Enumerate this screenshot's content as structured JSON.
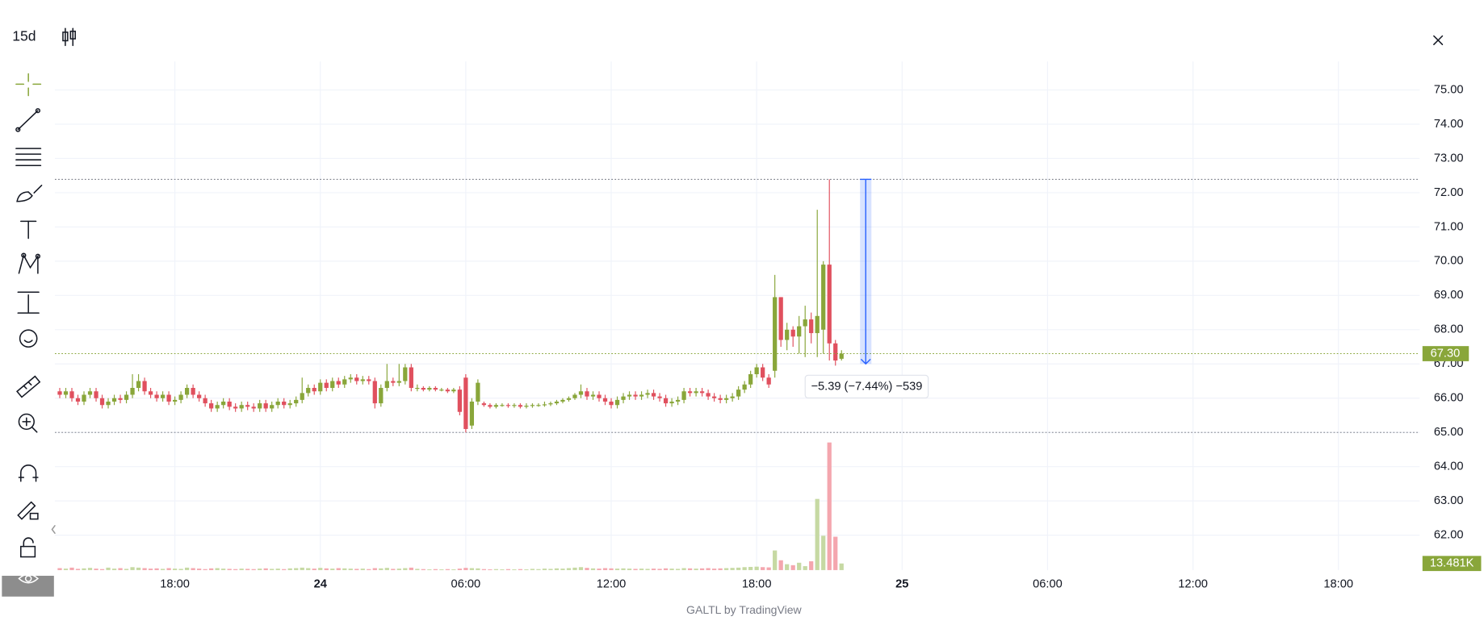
{
  "toolbar": {
    "interval": "15d"
  },
  "footer": "GALTL by TradingView",
  "chart_data": {
    "type": "candlestick",
    "up_color": "#89a63a",
    "down_color": "#e0505e",
    "up_volume_color": "#c6d9a3",
    "down_volume_color": "#f4a6ae",
    "grid": true,
    "xlim": [
      -0.8,
      224.4
    ],
    "xticks": [
      {
        "value": 19,
        "label": "18:00"
      },
      {
        "value": 43,
        "label": "24"
      },
      {
        "value": 67,
        "label": "06:00"
      },
      {
        "value": 91,
        "label": "12:00"
      },
      {
        "value": 115,
        "label": "18:00"
      },
      {
        "value": 139,
        "label": "25"
      },
      {
        "value": 163,
        "label": "06:00"
      },
      {
        "value": 187,
        "label": "12:00"
      },
      {
        "value": 211,
        "label": "18:00"
      }
    ],
    "ylim": [
      60.98,
      75.83
    ],
    "yticks": [
      {
        "value": 62,
        "label": "62.00"
      },
      {
        "value": 63,
        "label": "63.00"
      },
      {
        "value": 64,
        "label": "64.00"
      },
      {
        "value": 65,
        "label": "65.00"
      },
      {
        "value": 66,
        "label": "66.00"
      },
      {
        "value": 67,
        "label": "67.00"
      },
      {
        "value": 68,
        "label": "68.00"
      },
      {
        "value": 69,
        "label": "69.00"
      },
      {
        "value": 70,
        "label": "70.00"
      },
      {
        "value": 71,
        "label": "71.00"
      },
      {
        "value": 72,
        "label": "72.00"
      },
      {
        "value": 73,
        "label": "73.00"
      },
      {
        "value": 74,
        "label": "74.00"
      },
      {
        "value": 75,
        "label": "75.00"
      }
    ],
    "open": [
      66.2,
      66.1,
      66.2,
      66.0,
      65.9,
      66.1,
      66.2,
      66.0,
      65.8,
      65.9,
      66.0,
      65.95,
      66.1,
      66.3,
      66.5,
      66.2,
      66.1,
      66.0,
      66.1,
      65.9,
      65.95,
      66.1,
      66.3,
      66.1,
      66.0,
      65.85,
      65.7,
      65.8,
      65.9,
      65.75,
      65.7,
      65.8,
      65.75,
      65.7,
      65.85,
      65.7,
      65.8,
      65.9,
      65.8,
      65.85,
      65.95,
      66.15,
      66.3,
      66.2,
      66.45,
      66.3,
      66.5,
      66.4,
      66.55,
      66.6,
      66.5,
      66.55,
      66.5,
      65.85,
      66.3,
      66.5,
      66.45,
      66.5,
      66.9,
      66.3,
      66.3,
      66.25,
      66.3,
      66.25,
      66.25,
      66.2,
      66.25,
      66.6,
      65.2,
      65.9,
      65.85,
      65.8,
      65.75,
      65.8,
      65.8,
      65.78,
      65.8,
      65.75,
      65.78,
      65.8,
      65.8,
      65.82,
      65.85,
      65.9,
      65.95,
      66.0,
      66.1,
      66.2,
      66.05,
      66.1,
      66.0,
      65.9,
      65.8,
      65.95,
      66.05,
      66.1,
      66.05,
      66.1,
      66.15,
      66.05,
      66.0,
      65.85,
      65.9,
      65.95,
      66.2,
      66.15,
      66.2,
      66.15,
      66.05,
      66.0,
      65.95,
      66.0,
      66.05,
      66.25,
      66.4,
      66.7,
      66.9,
      66.6,
      66.8,
      68.95,
      67.7,
      68.0,
      67.8,
      68.1,
      68.3,
      67.9,
      68.0,
      69.9,
      67.6,
      67.15
    ],
    "high": [
      66.3,
      66.3,
      66.3,
      66.1,
      66.2,
      66.3,
      66.3,
      66.1,
      66.0,
      66.1,
      66.1,
      66.2,
      66.7,
      66.7,
      66.6,
      66.3,
      66.2,
      66.2,
      66.2,
      66.05,
      66.2,
      66.4,
      66.4,
      66.2,
      66.1,
      65.95,
      65.9,
      66.0,
      66.0,
      65.85,
      65.9,
      65.9,
      65.85,
      65.95,
      65.95,
      65.9,
      66.0,
      66.0,
      65.95,
      66.05,
      66.6,
      66.4,
      66.4,
      66.55,
      66.55,
      66.6,
      66.6,
      66.65,
      66.7,
      66.7,
      66.65,
      66.65,
      66.6,
      66.4,
      67.0,
      66.6,
      67.0,
      67.0,
      67.0,
      66.4,
      66.35,
      66.35,
      66.35,
      66.3,
      66.3,
      66.3,
      66.35,
      66.7,
      66.0,
      66.55,
      65.9,
      65.85,
      65.85,
      65.85,
      65.85,
      65.85,
      65.85,
      65.85,
      65.85,
      65.85,
      65.9,
      65.9,
      65.95,
      66.0,
      66.05,
      66.15,
      66.4,
      66.3,
      66.2,
      66.2,
      66.1,
      66.0,
      66.05,
      66.15,
      66.2,
      66.2,
      66.2,
      66.25,
      66.25,
      66.15,
      66.1,
      66.0,
      66.05,
      66.3,
      66.3,
      66.3,
      66.3,
      66.25,
      66.15,
      66.1,
      66.1,
      66.15,
      66.35,
      66.5,
      66.8,
      67.0,
      67.0,
      66.7,
      69.6,
      68.95,
      68.2,
      68.1,
      68.4,
      68.7,
      68.5,
      71.5,
      70.0,
      72.39,
      67.7,
      67.4
    ],
    "low": [
      66.0,
      66.0,
      65.9,
      65.8,
      65.8,
      66.0,
      65.9,
      65.7,
      65.7,
      65.8,
      65.85,
      65.85,
      66.0,
      66.2,
      66.1,
      66.0,
      65.9,
      65.9,
      65.8,
      65.8,
      65.85,
      66.0,
      66.0,
      65.9,
      65.75,
      65.6,
      65.6,
      65.7,
      65.65,
      65.6,
      65.6,
      65.65,
      65.6,
      65.6,
      65.6,
      65.6,
      65.7,
      65.7,
      65.7,
      65.75,
      65.85,
      66.05,
      66.1,
      66.1,
      66.2,
      66.2,
      66.3,
      66.3,
      66.45,
      66.4,
      66.4,
      66.4,
      65.7,
      65.75,
      66.2,
      66.35,
      66.35,
      66.4,
      66.2,
      66.2,
      66.2,
      66.2,
      66.2,
      66.2,
      66.15,
      66.15,
      65.5,
      65.0,
      65.1,
      65.8,
      65.75,
      65.7,
      65.7,
      65.75,
      65.72,
      65.72,
      65.7,
      65.7,
      65.72,
      65.75,
      65.75,
      65.77,
      65.8,
      65.85,
      65.9,
      65.95,
      66.0,
      65.95,
      65.95,
      65.9,
      65.8,
      65.7,
      65.7,
      65.85,
      65.95,
      65.95,
      65.95,
      66.0,
      65.95,
      65.9,
      65.75,
      65.75,
      65.8,
      65.85,
      66.05,
      66.05,
      66.05,
      65.95,
      65.9,
      65.85,
      65.85,
      65.9,
      65.95,
      66.15,
      66.3,
      66.6,
      66.5,
      66.3,
      66.6,
      67.5,
      67.4,
      67.5,
      67.3,
      67.2,
      67.6,
      67.2,
      67.3,
      67.1,
      66.95,
      67.1
    ],
    "close": [
      66.1,
      66.2,
      66.0,
      65.9,
      66.1,
      66.2,
      66.0,
      65.8,
      65.9,
      66.0,
      65.95,
      66.1,
      66.3,
      66.5,
      66.2,
      66.1,
      66.0,
      66.1,
      65.9,
      65.95,
      66.1,
      66.3,
      66.1,
      66.0,
      65.85,
      65.7,
      65.8,
      65.9,
      65.75,
      65.7,
      65.8,
      65.75,
      65.7,
      65.85,
      65.7,
      65.8,
      65.9,
      65.8,
      65.85,
      65.95,
      66.15,
      66.3,
      66.2,
      66.45,
      66.3,
      66.5,
      66.4,
      66.55,
      66.6,
      66.5,
      66.55,
      66.5,
      65.85,
      66.3,
      66.5,
      66.45,
      66.5,
      66.9,
      66.3,
      66.3,
      66.25,
      66.3,
      66.25,
      66.25,
      66.2,
      66.25,
      65.6,
      65.1,
      65.9,
      66.45,
      65.8,
      65.75,
      65.8,
      65.8,
      65.78,
      65.8,
      65.75,
      65.78,
      65.8,
      65.8,
      65.82,
      65.85,
      65.9,
      65.95,
      66.0,
      66.1,
      66.2,
      66.05,
      66.1,
      66.0,
      65.9,
      65.8,
      65.95,
      66.05,
      66.1,
      66.05,
      66.1,
      66.15,
      66.05,
      66.0,
      65.85,
      65.9,
      65.95,
      66.2,
      66.15,
      66.2,
      66.15,
      66.05,
      66.0,
      65.95,
      66.0,
      66.05,
      66.25,
      66.4,
      66.7,
      66.9,
      66.6,
      66.4,
      68.95,
      67.7,
      68.0,
      67.8,
      68.1,
      68.3,
      67.9,
      68.4,
      69.9,
      67.6,
      67.1,
      67.3
    ],
    "volume": [
      4000,
      3000,
      5000,
      2500,
      3500,
      4500,
      3000,
      2000,
      5000,
      3000,
      4000,
      2500,
      6000,
      5000,
      4000,
      3000,
      3500,
      2500,
      4000,
      3000,
      2500,
      5000,
      4000,
      3000,
      2000,
      3500,
      4000,
      3000,
      2500,
      2000,
      3000,
      2500,
      2000,
      3000,
      3500,
      2500,
      3000,
      2000,
      3500,
      4000,
      5000,
      4000,
      3000,
      4500,
      3500,
      3000,
      4000,
      3500,
      3000,
      2500,
      3000,
      2000,
      4000,
      3500,
      4500,
      2500,
      3000,
      4000,
      5000,
      2500,
      2000,
      1500,
      2000,
      1500,
      2000,
      1500,
      3000,
      4500,
      4000,
      3500,
      2000,
      1500,
      2000,
      1500,
      2000,
      1500,
      2000,
      1500,
      2500,
      2000,
      3000,
      2500,
      3500,
      3000,
      4000,
      5000,
      6000,
      4500,
      3500,
      3000,
      4000,
      3500,
      3000,
      3500,
      3000,
      2500,
      3000,
      2500,
      3000,
      2500,
      3500,
      3000,
      2500,
      4000,
      3500,
      3000,
      3500,
      4000,
      3000,
      3500,
      4000,
      4500,
      5000,
      6000,
      6500,
      7000,
      6000,
      5500,
      40000,
      20000,
      12000,
      10000,
      15000,
      8000,
      18000,
      145000,
      70000,
      260000,
      68000,
      13481
    ],
    "last_close_label": "67.30",
    "last_volume_label": "13.481K",
    "hlines": [
      72.39,
      65.0
    ],
    "measure": {
      "from": 72.39,
      "to": 67.0,
      "label": "−5.39 (−7.44%) −539"
    }
  }
}
